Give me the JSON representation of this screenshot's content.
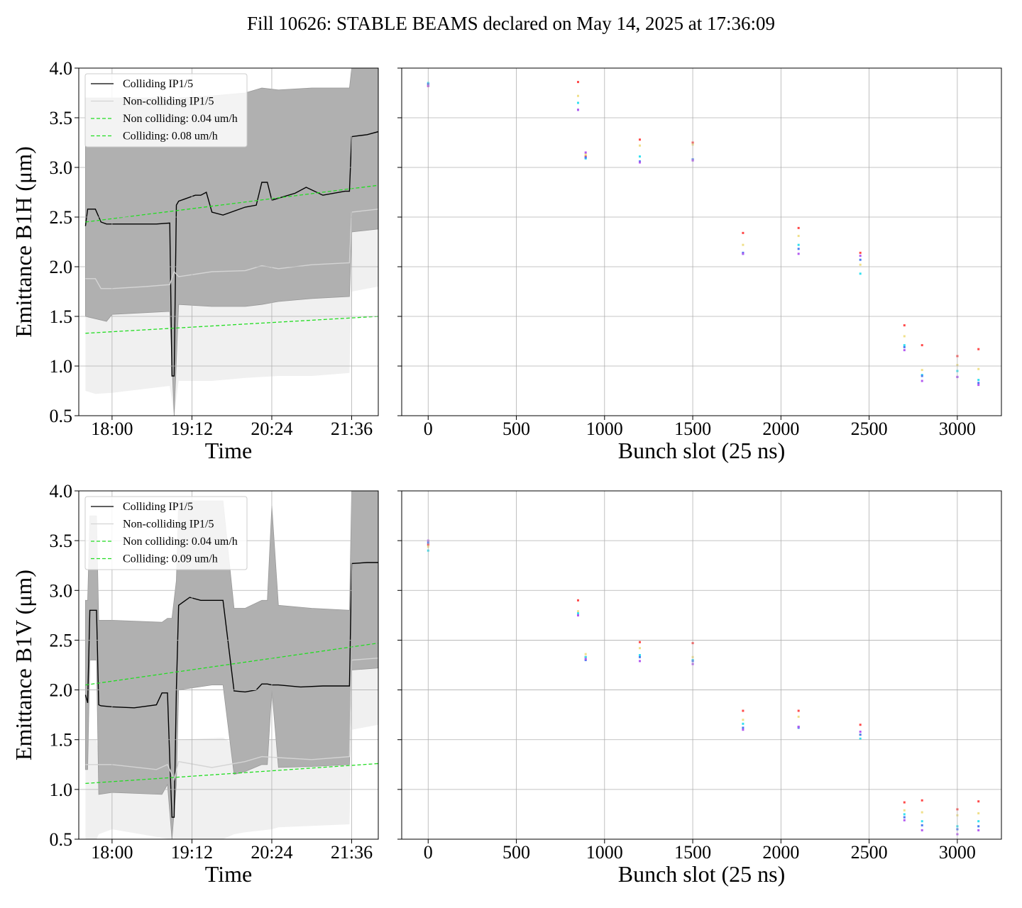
{
  "title": "Fill 10626: STABLE BEAMS declared on May 14, 2025 at 17:36:09",
  "colors": {
    "colliding": "#000000",
    "noncolliding": "#d4d4d4",
    "band_colliding": "#b0b0b0",
    "band_noncolliding": "#f0f0f0",
    "fit": "#22dd22",
    "grid": "#b0b0b0",
    "bunch_series": [
      "#ff4a4a",
      "#f0e08a",
      "#34e0f0",
      "#4a7cf0",
      "#b45af0"
    ]
  },
  "chart_data": [
    {
      "type": "line",
      "panel": "top-left",
      "xlabel": "Time",
      "ylabel": "Emittance B1H (μm)",
      "ylim": [
        0.5,
        4.0
      ],
      "yticks": [
        "0.5",
        "1.0",
        "1.5",
        "2.0",
        "2.5",
        "3.0",
        "3.5",
        "4.0"
      ],
      "xlim_hours": [
        17.5,
        22.0
      ],
      "xticks": [
        "18:00",
        "19:12",
        "20:24",
        "21:36"
      ],
      "grid": true,
      "legend_position": "top-left",
      "legend": [
        "Colliding IP1/5",
        "Non-colliding IP1/5",
        "Non colliding: 0.04 um/h",
        "Colliding: 0.08 um/h"
      ],
      "series": [
        {
          "name": "Colliding IP1/5",
          "x": [
            "17:36",
            "17:38",
            "17:40",
            "17:45",
            "17:50",
            "17:55",
            "18:00",
            "18:20",
            "18:40",
            "18:52",
            "18:54",
            "18:56",
            "18:58",
            "19:00",
            "19:05",
            "19:15",
            "19:20",
            "19:25",
            "19:30",
            "19:40",
            "20:00",
            "20:10",
            "20:15",
            "20:20",
            "20:24",
            "20:30",
            "20:45",
            "20:55",
            "21:10",
            "21:30",
            "21:34",
            "21:36",
            "21:50",
            "22:00"
          ],
          "y": [
            2.41,
            2.58,
            2.58,
            2.58,
            2.45,
            2.43,
            2.43,
            2.43,
            2.43,
            2.44,
            0.9,
            0.9,
            2.62,
            2.66,
            2.68,
            2.72,
            2.72,
            2.75,
            2.55,
            2.52,
            2.6,
            2.62,
            2.85,
            2.85,
            2.67,
            2.69,
            2.74,
            2.8,
            2.72,
            2.76,
            2.76,
            3.31,
            3.33,
            3.36
          ]
        },
        {
          "name": "Non-colliding IP1/5",
          "x": [
            "17:36",
            "17:45",
            "17:50",
            "18:00",
            "18:30",
            "18:52",
            "18:56",
            "19:00",
            "19:30",
            "20:00",
            "20:15",
            "20:30",
            "21:00",
            "21:34",
            "21:36",
            "22:00"
          ],
          "y": [
            1.88,
            1.88,
            1.78,
            1.78,
            1.8,
            1.82,
            1.95,
            1.9,
            1.95,
            1.96,
            2.01,
            1.98,
            2.02,
            2.04,
            2.55,
            2.58
          ]
        },
        {
          "name": "Non colliding: 0.04 um/h",
          "x": [
            "17:36",
            "22:00"
          ],
          "y": [
            1.33,
            1.5
          ]
        },
        {
          "name": "Colliding: 0.08 um/h",
          "x": [
            "17:36",
            "22:00"
          ],
          "y": [
            2.45,
            2.82
          ]
        }
      ],
      "bands": {
        "colliding": {
          "x": [
            "17:36",
            "17:55",
            "18:00",
            "18:52",
            "18:56",
            "19:00",
            "19:30",
            "20:00",
            "20:15",
            "20:30",
            "21:00",
            "21:34",
            "21:36",
            "22:00"
          ],
          "lower": [
            1.5,
            1.45,
            1.52,
            1.55,
            0.5,
            1.62,
            1.6,
            1.6,
            1.62,
            1.65,
            1.68,
            1.7,
            2.35,
            2.38
          ],
          "upper": [
            3.7,
            3.7,
            3.7,
            3.7,
            3.6,
            3.7,
            3.72,
            3.75,
            3.8,
            3.78,
            3.8,
            3.8,
            4.0,
            4.0
          ]
        },
        "noncolliding": {
          "x": [
            "17:36",
            "17:45",
            "18:00",
            "18:52",
            "18:56",
            "19:00",
            "19:30",
            "20:00",
            "20:30",
            "21:00",
            "21:34",
            "21:36",
            "22:00"
          ],
          "lower": [
            0.75,
            0.72,
            0.73,
            0.8,
            0.5,
            0.85,
            0.85,
            0.88,
            0.9,
            0.9,
            0.93,
            1.75,
            1.8
          ],
          "upper": [
            2.65,
            2.6,
            2.6,
            2.62,
            2.62,
            2.6,
            2.65,
            2.7,
            2.75,
            2.78,
            2.8,
            3.15,
            3.25
          ]
        }
      }
    },
    {
      "type": "scatter",
      "panel": "top-right",
      "xlabel": "Bunch slot (25 ns)",
      "xlim": [
        -150,
        3250
      ],
      "xticks": [
        "0",
        "500",
        "1000",
        "1500",
        "2000",
        "2500",
        "3000"
      ],
      "ylim": [
        0.5,
        4.0
      ],
      "grid": true,
      "points": [
        {
          "x": 0,
          "ys": [
            3.82,
            3.83,
            3.85,
            3.84,
            3.82
          ]
        },
        {
          "x": 850,
          "ys": [
            3.86,
            3.72,
            3.65,
            3.58,
            3.58
          ]
        },
        {
          "x": 893,
          "ys": [
            3.11,
            3.13,
            3.09,
            3.1,
            3.15
          ]
        },
        {
          "x": 1200,
          "ys": [
            3.28,
            3.22,
            3.11,
            3.06,
            3.05
          ]
        },
        {
          "x": 1500,
          "ys": [
            3.25,
            3.23,
            3.08,
            3.08,
            3.07
          ]
        },
        {
          "x": 1785,
          "ys": [
            2.34,
            2.22,
            2.13,
            2.14,
            2.13
          ]
        },
        {
          "x": 2100,
          "ys": [
            2.39,
            2.31,
            2.22,
            2.18,
            2.13
          ]
        },
        {
          "x": 2450,
          "ys": [
            2.14,
            2.02,
            1.93,
            2.07,
            2.11
          ]
        },
        {
          "x": 2700,
          "ys": [
            1.41,
            1.3,
            1.21,
            1.19,
            1.16
          ]
        },
        {
          "x": 2800,
          "ys": [
            1.21,
            0.96,
            0.91,
            0.9,
            0.85
          ]
        },
        {
          "x": 3000,
          "ys": [
            1.1,
            1.01,
            0.95,
            0.89,
            0.89
          ]
        },
        {
          "x": 3120,
          "ys": [
            1.17,
            0.97,
            0.86,
            0.83,
            0.81
          ]
        }
      ]
    },
    {
      "type": "line",
      "panel": "bottom-left",
      "xlabel": "Time",
      "ylabel": "Emittance B1V (μm)",
      "ylim": [
        0.5,
        4.0
      ],
      "yticks": [
        "0.5",
        "1.0",
        "1.5",
        "2.0",
        "2.5",
        "3.0",
        "3.5",
        "4.0"
      ],
      "xlim_hours": [
        17.5,
        22.0
      ],
      "xticks": [
        "18:00",
        "19:12",
        "20:24",
        "21:36"
      ],
      "grid": true,
      "legend_position": "top-left",
      "legend": [
        "Colliding IP1/5",
        "Non-colliding IP1/5",
        "Non colliding: 0.04 um/h",
        "Colliding: 0.09 um/h"
      ],
      "series": [
        {
          "name": "Colliding IP1/5",
          "x": [
            "17:36",
            "17:38",
            "17:40",
            "17:46",
            "17:48",
            "17:50",
            "18:00",
            "18:20",
            "18:40",
            "18:45",
            "18:50",
            "18:52",
            "18:54",
            "18:56",
            "18:58",
            "19:00",
            "19:10",
            "19:20",
            "19:30",
            "19:40",
            "19:50",
            "20:00",
            "20:10",
            "20:15",
            "20:20",
            "20:24",
            "20:30",
            "20:50",
            "21:10",
            "21:30",
            "21:34",
            "21:36",
            "21:50",
            "22:00"
          ],
          "y": [
            1.95,
            1.87,
            2.8,
            2.8,
            1.85,
            1.84,
            1.83,
            1.82,
            1.85,
            1.97,
            1.97,
            1.3,
            0.72,
            0.72,
            2.0,
            2.85,
            2.93,
            2.9,
            2.9,
            2.9,
            1.99,
            1.98,
            2.0,
            2.06,
            2.06,
            2.05,
            2.05,
            2.03,
            2.04,
            2.04,
            2.04,
            3.27,
            3.28,
            3.28
          ]
        },
        {
          "name": "Non-colliding IP1/5",
          "x": [
            "17:36",
            "17:45",
            "18:00",
            "18:40",
            "18:50",
            "18:56",
            "19:00",
            "19:30",
            "20:00",
            "20:15",
            "20:30",
            "21:00",
            "21:34",
            "21:36",
            "22:00"
          ],
          "y": [
            1.25,
            1.25,
            1.25,
            1.2,
            1.25,
            1.1,
            1.28,
            1.22,
            1.28,
            1.33,
            1.32,
            1.3,
            1.33,
            2.3,
            2.32
          ]
        },
        {
          "name": "Non colliding: 0.04 um/h",
          "x": [
            "17:36",
            "22:00"
          ],
          "y": [
            1.06,
            1.26
          ]
        },
        {
          "name": "Colliding: 0.09 um/h",
          "x": [
            "17:36",
            "22:00"
          ],
          "y": [
            2.05,
            2.47
          ]
        }
      ],
      "bands": {
        "colliding": {
          "x": [
            "17:36",
            "17:38",
            "17:40",
            "17:46",
            "17:48",
            "18:00",
            "18:45",
            "18:50",
            "18:54",
            "18:58",
            "19:00",
            "19:30",
            "19:40",
            "19:50",
            "20:00",
            "20:15",
            "20:20",
            "20:24",
            "20:30",
            "21:00",
            "21:34",
            "21:36",
            "22:00"
          ],
          "lower": [
            1.2,
            1.2,
            2.3,
            2.3,
            0.95,
            0.97,
            0.95,
            1.05,
            0.5,
            1.05,
            2.0,
            2.05,
            2.05,
            1.15,
            1.18,
            1.25,
            1.25,
            2.0,
            1.22,
            1.23,
            1.25,
            2.2,
            2.22
          ],
          "upper": [
            2.9,
            2.9,
            3.75,
            3.75,
            2.7,
            2.7,
            2.68,
            2.72,
            2.72,
            3.1,
            3.9,
            3.9,
            3.9,
            2.82,
            2.82,
            2.9,
            2.9,
            3.85,
            2.85,
            2.82,
            2.8,
            4.0,
            4.0
          ]
        },
        "noncolliding": {
          "x": [
            "17:36",
            "17:38",
            "17:40",
            "17:46",
            "17:48",
            "18:00",
            "18:52",
            "18:56",
            "19:00",
            "19:40",
            "19:50",
            "20:00",
            "20:24",
            "20:30",
            "21:34",
            "21:36",
            "22:00"
          ],
          "lower": [
            0.5,
            0.5,
            0.5,
            0.5,
            0.55,
            0.6,
            0.5,
            0.5,
            0.5,
            0.5,
            0.55,
            0.57,
            0.6,
            0.62,
            0.65,
            1.6,
            1.65
          ],
          "upper": [
            1.5,
            1.5,
            1.5,
            1.5,
            1.35,
            1.38,
            1.4,
            1.35,
            1.5,
            1.52,
            1.45,
            1.5,
            1.5,
            1.52,
            1.55,
            2.45,
            2.5
          ]
        }
      }
    },
    {
      "type": "scatter",
      "panel": "bottom-right",
      "xlabel": "Bunch slot (25 ns)",
      "xlim": [
        -150,
        3250
      ],
      "xticks": [
        "0",
        "500",
        "1000",
        "1500",
        "2000",
        "2500",
        "3000"
      ],
      "ylim": [
        0.5,
        4.0
      ],
      "grid": true,
      "points": [
        {
          "x": 0,
          "ys": [
            3.46,
            3.44,
            3.4,
            3.48,
            3.5
          ]
        },
        {
          "x": 850,
          "ys": [
            2.9,
            2.79,
            2.77,
            2.75,
            2.75
          ]
        },
        {
          "x": 893,
          "ys": [
            2.33,
            2.36,
            2.33,
            2.3,
            2.31
          ]
        },
        {
          "x": 1200,
          "ys": [
            2.48,
            2.42,
            2.35,
            2.33,
            2.29
          ]
        },
        {
          "x": 1500,
          "ys": [
            2.47,
            2.33,
            2.3,
            2.29,
            2.26
          ]
        },
        {
          "x": 1785,
          "ys": [
            1.79,
            1.7,
            1.66,
            1.62,
            1.6
          ]
        },
        {
          "x": 2100,
          "ys": [
            1.79,
            1.73,
            1.63,
            1.62,
            1.63
          ]
        },
        {
          "x": 2450,
          "ys": [
            1.65,
            1.55,
            1.51,
            1.55,
            1.58
          ]
        },
        {
          "x": 2700,
          "ys": [
            0.87,
            0.79,
            0.75,
            0.72,
            0.69
          ]
        },
        {
          "x": 2800,
          "ys": [
            0.89,
            0.77,
            0.68,
            0.64,
            0.59
          ]
        },
        {
          "x": 3000,
          "ys": [
            0.8,
            0.74,
            0.63,
            0.6,
            0.55
          ]
        },
        {
          "x": 3120,
          "ys": [
            0.88,
            0.76,
            0.68,
            0.63,
            0.59
          ]
        }
      ]
    }
  ]
}
